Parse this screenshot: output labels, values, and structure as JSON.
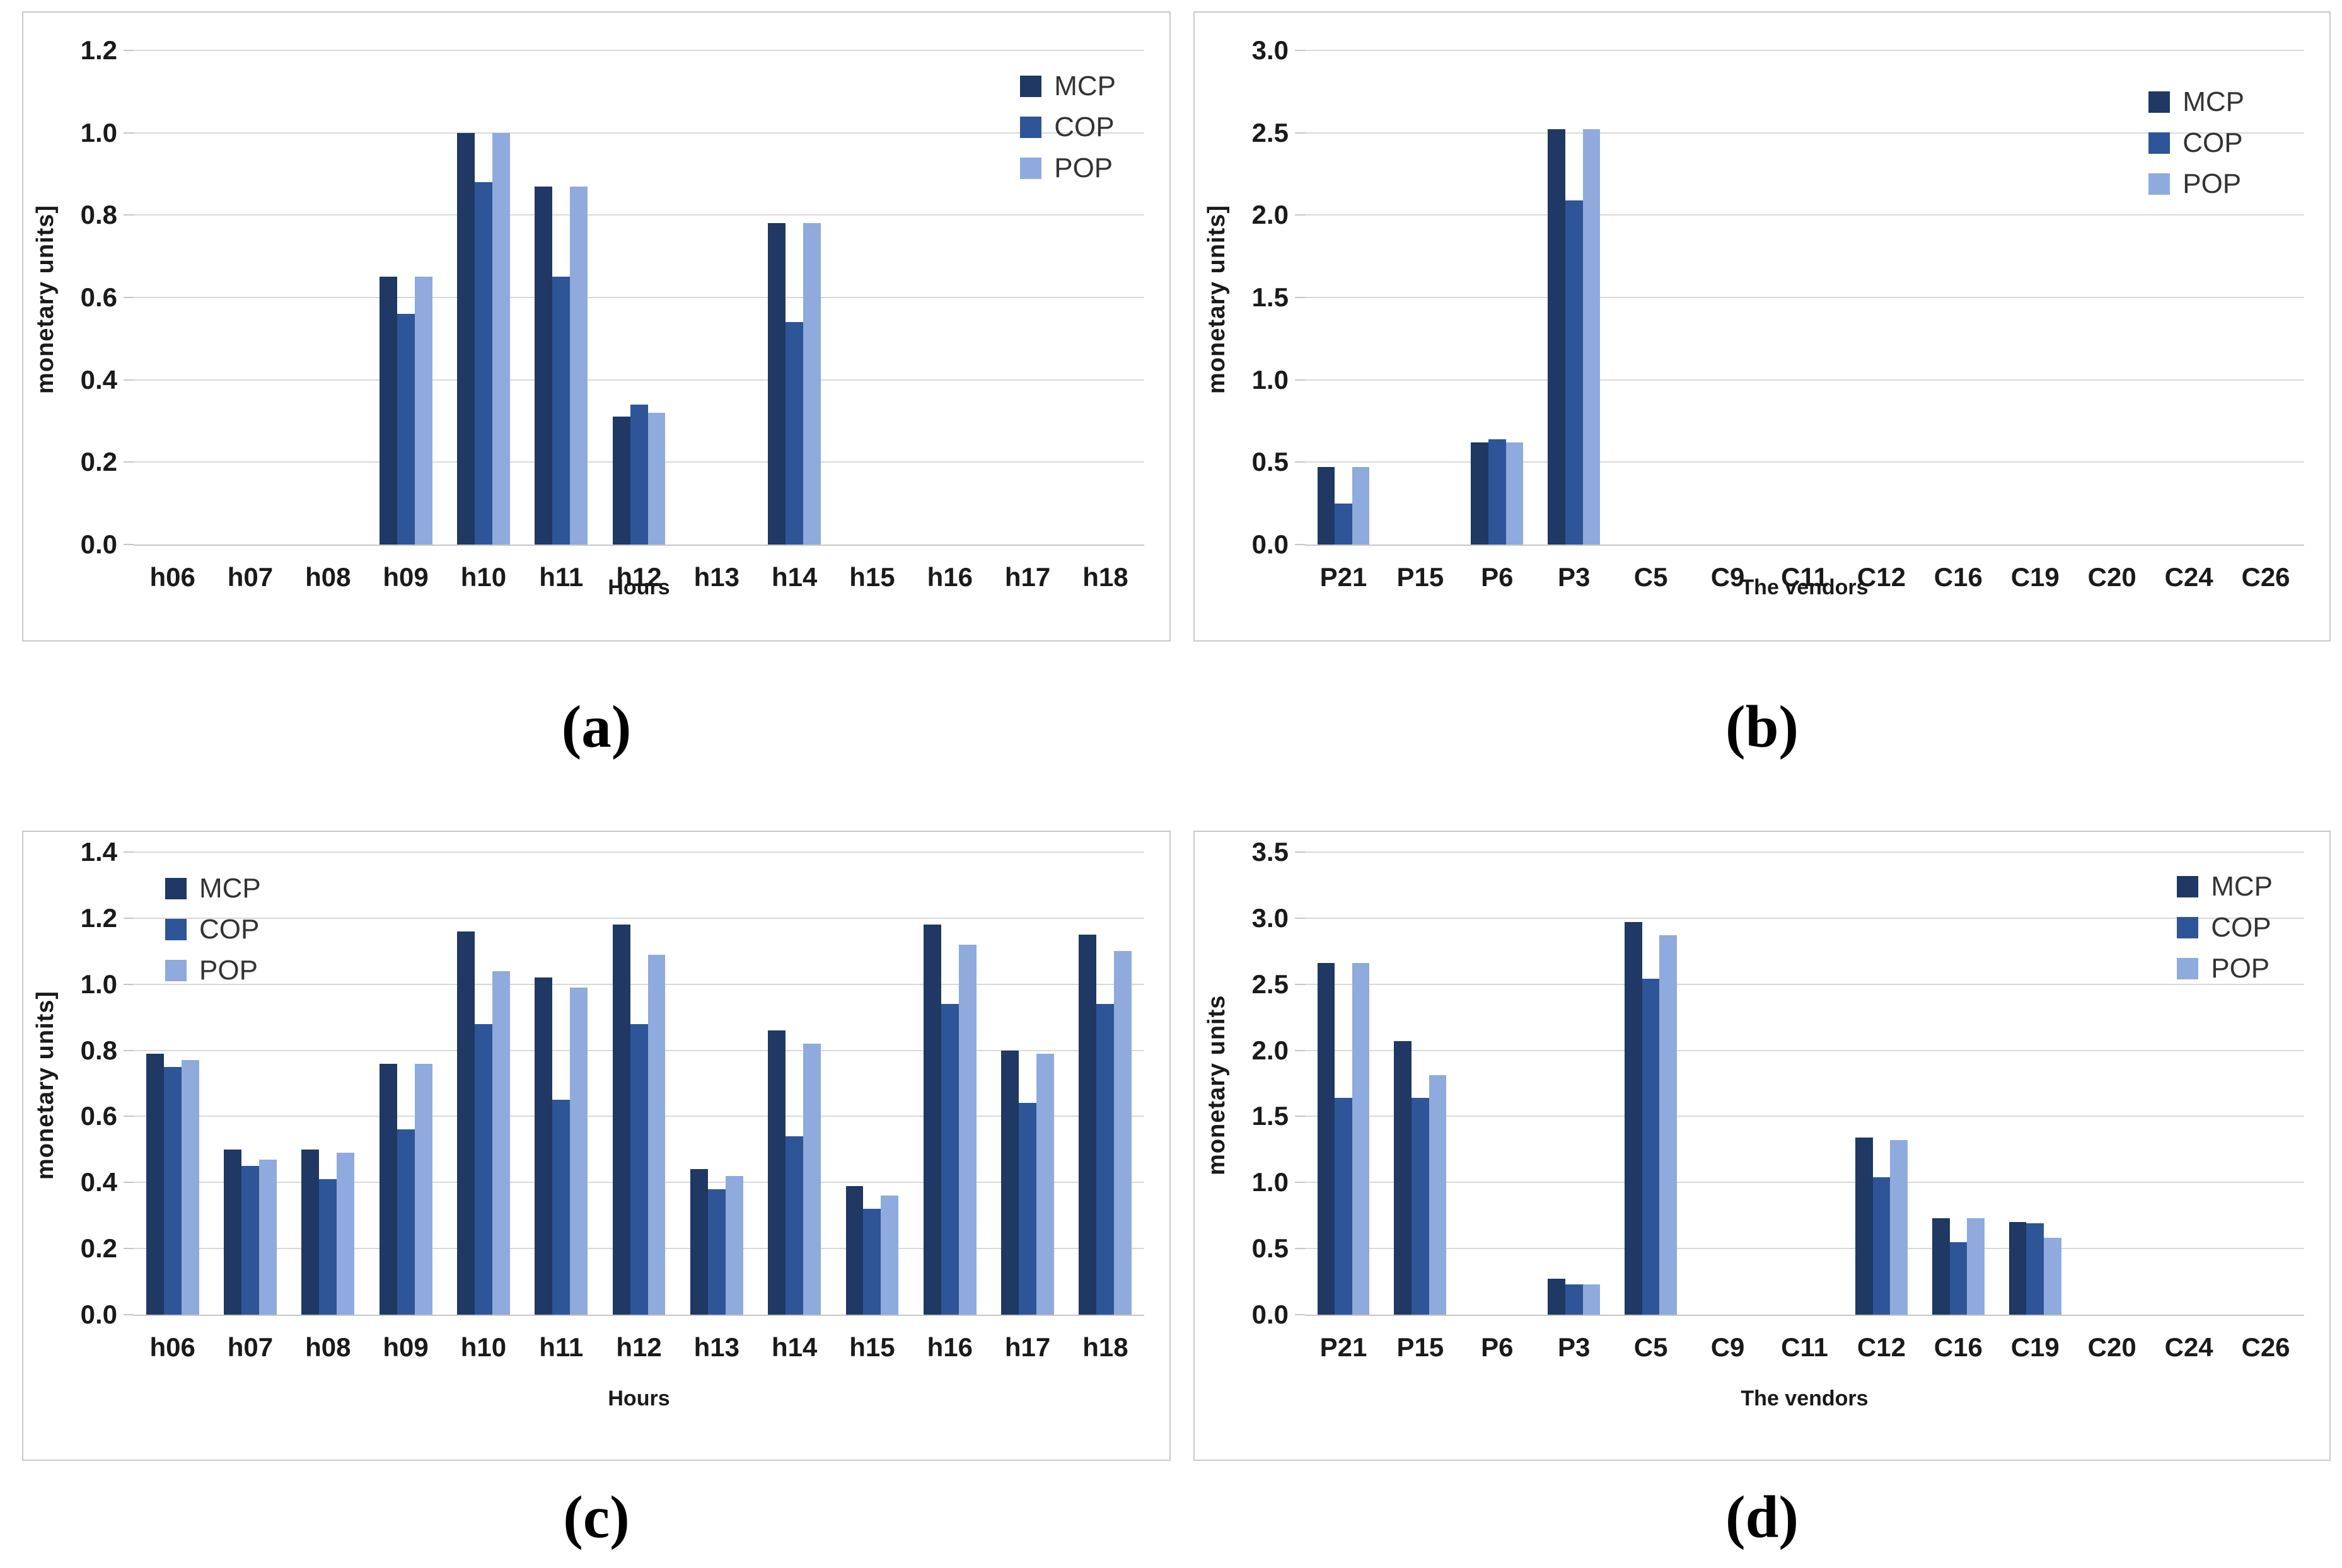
{
  "colors": {
    "MCP": "#1f3864",
    "COP": "#2e5597",
    "POP": "#8faadc",
    "gridline": "#d9d9d9",
    "axis": "#c6c6c6",
    "panel_border": "#c9c9c9"
  },
  "legend_labels": [
    "MCP",
    "COP",
    "POP"
  ],
  "chart_data": [
    {
      "id": "a",
      "type": "bar",
      "caption": "(a)",
      "ylabel": "monetary units]",
      "xlabel": "Hours",
      "ylim": [
        0,
        1.2
      ],
      "y_step": 0.2,
      "grid": true,
      "legend_position": "top-right",
      "categories": [
        "h06",
        "h07",
        "h08",
        "h09",
        "h10",
        "h11",
        "h12",
        "h13",
        "h14",
        "h15",
        "h16",
        "h17",
        "h18"
      ],
      "series": [
        {
          "name": "MCP",
          "values": [
            0,
            0,
            0,
            0.65,
            1.0,
            0.87,
            0.31,
            0,
            0.78,
            0,
            0,
            0,
            0
          ]
        },
        {
          "name": "COP",
          "values": [
            0,
            0,
            0,
            0.56,
            0.88,
            0.65,
            0.34,
            0,
            0.54,
            0,
            0,
            0,
            0
          ]
        },
        {
          "name": "POP",
          "values": [
            0,
            0,
            0,
            0.65,
            1.0,
            0.87,
            0.32,
            0,
            0.78,
            0,
            0,
            0,
            0
          ]
        }
      ]
    },
    {
      "id": "b",
      "type": "bar",
      "caption": "(b)",
      "ylabel": "monetary units]",
      "xlabel": "The vendors",
      "ylim": [
        0,
        3.0
      ],
      "y_step": 0.5,
      "grid": true,
      "legend_position": "top-right",
      "categories": [
        "P21",
        "P15",
        "P6",
        "P3",
        "C5",
        "C9",
        "C11",
        "C12",
        "C16",
        "C19",
        "C20",
        "C24",
        "C26"
      ],
      "series": [
        {
          "name": "MCP",
          "values": [
            0.47,
            0,
            0.62,
            2.52,
            0,
            0,
            0,
            0,
            0,
            0,
            0,
            0,
            0
          ]
        },
        {
          "name": "COP",
          "values": [
            0.25,
            0,
            0.64,
            2.09,
            0,
            0,
            0,
            0,
            0,
            0,
            0,
            0,
            0
          ]
        },
        {
          "name": "POP",
          "values": [
            0.47,
            0,
            0.62,
            2.52,
            0,
            0,
            0,
            0,
            0,
            0,
            0,
            0,
            0
          ]
        }
      ]
    },
    {
      "id": "c",
      "type": "bar",
      "caption": "(c)",
      "ylabel": "monetary units]",
      "xlabel": "Hours",
      "ylim": [
        0,
        1.4
      ],
      "y_step": 0.2,
      "grid": true,
      "legend_position": "top-left",
      "categories": [
        "h06",
        "h07",
        "h08",
        "h09",
        "h10",
        "h11",
        "h12",
        "h13",
        "h14",
        "h15",
        "h16",
        "h17",
        "h18"
      ],
      "series": [
        {
          "name": "MCP",
          "values": [
            0.79,
            0.5,
            0.5,
            0.76,
            1.16,
            1.02,
            1.18,
            0.44,
            0.86,
            0.39,
            1.18,
            0.8,
            1.15
          ]
        },
        {
          "name": "COP",
          "values": [
            0.75,
            0.45,
            0.41,
            0.56,
            0.88,
            0.65,
            0.88,
            0.38,
            0.54,
            0.32,
            0.94,
            0.64,
            0.94
          ]
        },
        {
          "name": "POP",
          "values": [
            0.77,
            0.47,
            0.49,
            0.76,
            1.04,
            0.99,
            1.09,
            0.42,
            0.82,
            0.36,
            1.12,
            0.79,
            1.1
          ]
        }
      ]
    },
    {
      "id": "d",
      "type": "bar",
      "caption": "(d)",
      "ylabel": "monetary units",
      "xlabel": "The vendors",
      "ylim": [
        0,
        3.5
      ],
      "y_step": 0.5,
      "grid": true,
      "legend_position": "top-right",
      "categories": [
        "P21",
        "P15",
        "P6",
        "P3",
        "C5",
        "C9",
        "C11",
        "C12",
        "C16",
        "C19",
        "C20",
        "C24",
        "C26"
      ],
      "series": [
        {
          "name": "MCP",
          "values": [
            2.66,
            2.07,
            0,
            0.27,
            2.97,
            0,
            0,
            1.34,
            0.73,
            0.7,
            0,
            0,
            0
          ]
        },
        {
          "name": "COP",
          "values": [
            1.64,
            1.64,
            0,
            0.23,
            2.54,
            0,
            0,
            1.04,
            0.55,
            0.69,
            0,
            0,
            0
          ]
        },
        {
          "name": "POP",
          "values": [
            2.66,
            1.81,
            0,
            0.23,
            2.87,
            0,
            0,
            1.32,
            0.73,
            0.58,
            0,
            0,
            0
          ]
        }
      ]
    }
  ]
}
